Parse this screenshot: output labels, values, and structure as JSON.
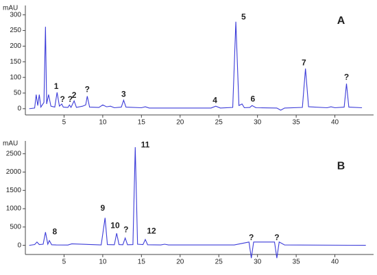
{
  "chart_data": [
    {
      "type": "line",
      "y_label": "mAU",
      "color": "#3a3ad8",
      "xlim": [
        0,
        45
      ],
      "ylim": [
        -20,
        330
      ],
      "xticks": [
        5,
        10,
        15,
        20,
        25,
        30,
        35,
        40
      ],
      "yticks": [
        0,
        50,
        100,
        150,
        200,
        250,
        300
      ],
      "x": [
        0.5,
        1.2,
        1.4,
        1.6,
        1.8,
        2.0,
        2.4,
        2.6,
        2.75,
        3.0,
        3.3,
        3.8,
        4.1,
        4.4,
        4.7,
        4.9,
        5.5,
        5.7,
        5.9,
        6.3,
        6.6,
        7.4,
        7.8,
        8.0,
        8.3,
        9.5,
        10.0,
        10.5,
        11.0,
        11.5,
        12.4,
        12.7,
        13.0,
        15.0,
        15.5,
        16.0,
        24.0,
        24.6,
        25.2,
        26.8,
        27.2,
        27.6,
        28.0,
        28.3,
        29.0,
        29.3,
        29.8,
        32.5,
        33.0,
        33.5,
        35.8,
        36.2,
        36.6,
        39.0,
        39.5,
        40.0,
        41.2,
        41.5,
        41.8,
        43.5
      ],
      "values": [
        0,
        2,
        45,
        10,
        45,
        5,
        20,
        262,
        15,
        45,
        8,
        5,
        52,
        8,
        15,
        5,
        4,
        12,
        4,
        25,
        4,
        8,
        12,
        40,
        5,
        4,
        12,
        6,
        8,
        3,
        5,
        27,
        5,
        3,
        6,
        2,
        2,
        8,
        2,
        4,
        278,
        10,
        15,
        3,
        4,
        10,
        3,
        2,
        -5,
        2,
        4,
        128,
        6,
        3,
        6,
        3,
        5,
        80,
        5,
        3
      ],
      "annotations": [
        {
          "text": "1",
          "x": 4.0,
          "y": 70
        },
        {
          "text": "?",
          "x": 4.8,
          "y": 28
        },
        {
          "text": "?",
          "x": 5.8,
          "y": 28
        },
        {
          "text": "2",
          "x": 6.3,
          "y": 42
        },
        {
          "text": "?",
          "x": 8.0,
          "y": 60
        },
        {
          "text": "3",
          "x": 12.7,
          "y": 45
        },
        {
          "text": "4",
          "x": 24.5,
          "y": 25
        },
        {
          "text": "5",
          "x": 28.2,
          "y": 292
        },
        {
          "text": "6",
          "x": 29.4,
          "y": 30
        },
        {
          "text": "7",
          "x": 36.0,
          "y": 145
        },
        {
          "text": "?",
          "x": 41.5,
          "y": 100
        },
        {
          "text": "A",
          "x": 40.8,
          "y": 280
        }
      ]
    },
    {
      "type": "line",
      "y_label": "mAU",
      "color": "#3a3ad8",
      "xlim": [
        0,
        45
      ],
      "ylim": [
        -250,
        2850
      ],
      "xticks": [
        5,
        10,
        15,
        20,
        25,
        30,
        35,
        40
      ],
      "yticks": [
        0,
        500,
        1000,
        1500,
        2000,
        2500
      ],
      "x": [
        0.5,
        1.2,
        1.5,
        1.8,
        2.3,
        2.6,
        2.9,
        3.1,
        3.4,
        4.0,
        5.5,
        6.0,
        9.8,
        10.3,
        10.6,
        11.5,
        11.8,
        12.1,
        12.6,
        12.9,
        13.2,
        13.9,
        14.2,
        14.5,
        15.2,
        15.5,
        15.8,
        17.5,
        18.0,
        18.5,
        27.0,
        28.9,
        29.2,
        29.5,
        32.2,
        32.5,
        32.8,
        33.5,
        44.0
      ],
      "values": [
        0,
        20,
        90,
        20,
        30,
        360,
        30,
        130,
        15,
        10,
        8,
        40,
        10,
        750,
        20,
        15,
        330,
        20,
        15,
        200,
        15,
        20,
        2680,
        30,
        20,
        160,
        15,
        10,
        30,
        10,
        10,
        90,
        -350,
        90,
        90,
        -350,
        90,
        10,
        0
      ],
      "annotations": [
        {
          "text": "8",
          "x": 3.8,
          "y": 360
        },
        {
          "text": "9",
          "x": 10.0,
          "y": 1000
        },
        {
          "text": "10",
          "x": 11.6,
          "y": 530
        },
        {
          "text": "?",
          "x": 13.0,
          "y": 420
        },
        {
          "text": "11",
          "x": 15.5,
          "y": 2730
        },
        {
          "text": "12",
          "x": 16.3,
          "y": 380
        },
        {
          "text": "?",
          "x": 29.2,
          "y": 200
        },
        {
          "text": "?",
          "x": 32.5,
          "y": 200
        },
        {
          "text": "B",
          "x": 40.8,
          "y": 2150
        }
      ]
    }
  ]
}
